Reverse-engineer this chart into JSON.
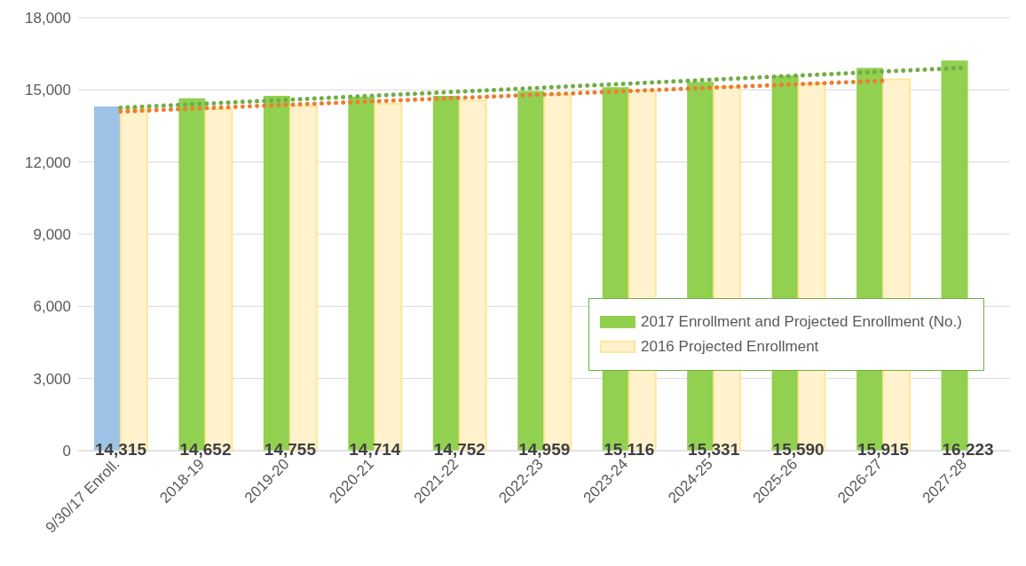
{
  "chart_data": {
    "type": "bar",
    "categories": [
      "9/30/17 Enroll.",
      "2018-19",
      "2019-20",
      "2020-21",
      "2021-22",
      "2022-23",
      "2023-24",
      "2024-25",
      "2025-26",
      "2026-27",
      "2027-28"
    ],
    "series": [
      {
        "name": "2017 Enrollment and Projected Enrollment (No.)",
        "color": "#92d050",
        "colors": [
          "#9dc3e6",
          "#92d050",
          "#92d050",
          "#92d050",
          "#92d050",
          "#92d050",
          "#92d050",
          "#92d050",
          "#92d050",
          "#92d050",
          "#92d050"
        ],
        "values": [
          14315,
          14652,
          14755,
          14714,
          14752,
          14959,
          15116,
          15331,
          15590,
          15915,
          16223
        ],
        "value_labels": [
          "14,315",
          "14,652",
          "14,755",
          "14,714",
          "14,752",
          "14,959",
          "15,116",
          "15,331",
          "15,590",
          "15,915",
          "16,223"
        ]
      },
      {
        "name": "2016 Projected Enrollment",
        "color": "#fff2cc",
        "values": [
          14230,
          14200,
          14330,
          14420,
          14550,
          14800,
          14970,
          15120,
          15270,
          15440,
          null
        ]
      },
      {
        "type": "line",
        "color": "#70ad47",
        "line_style": "dotted",
        "marker": "none",
        "x": [
          "9/30/17 Enroll.",
          "2027-28"
        ],
        "values": [
          14260,
          15930
        ]
      },
      {
        "type": "line",
        "color": "#ed7d31",
        "line_style": "dotted",
        "marker": "none",
        "x": [
          "9/30/17 Enroll.",
          "2026-27"
        ],
        "values": [
          14100,
          15380
        ]
      }
    ],
    "ylim": [
      0,
      18000
    ],
    "yticks": [
      0,
      {
        "value": 3000,
        "label": "3,000"
      },
      {
        "value": 6000,
        "label": "6,000"
      },
      {
        "value": 9000,
        "label": "9,000"
      },
      {
        "value": 12000,
        "label": "12,000"
      },
      {
        "value": 15000,
        "label": "15,000"
      },
      {
        "value": 18000,
        "label": "18,000"
      }
    ],
    "grid": "y",
    "legend": "right"
  }
}
